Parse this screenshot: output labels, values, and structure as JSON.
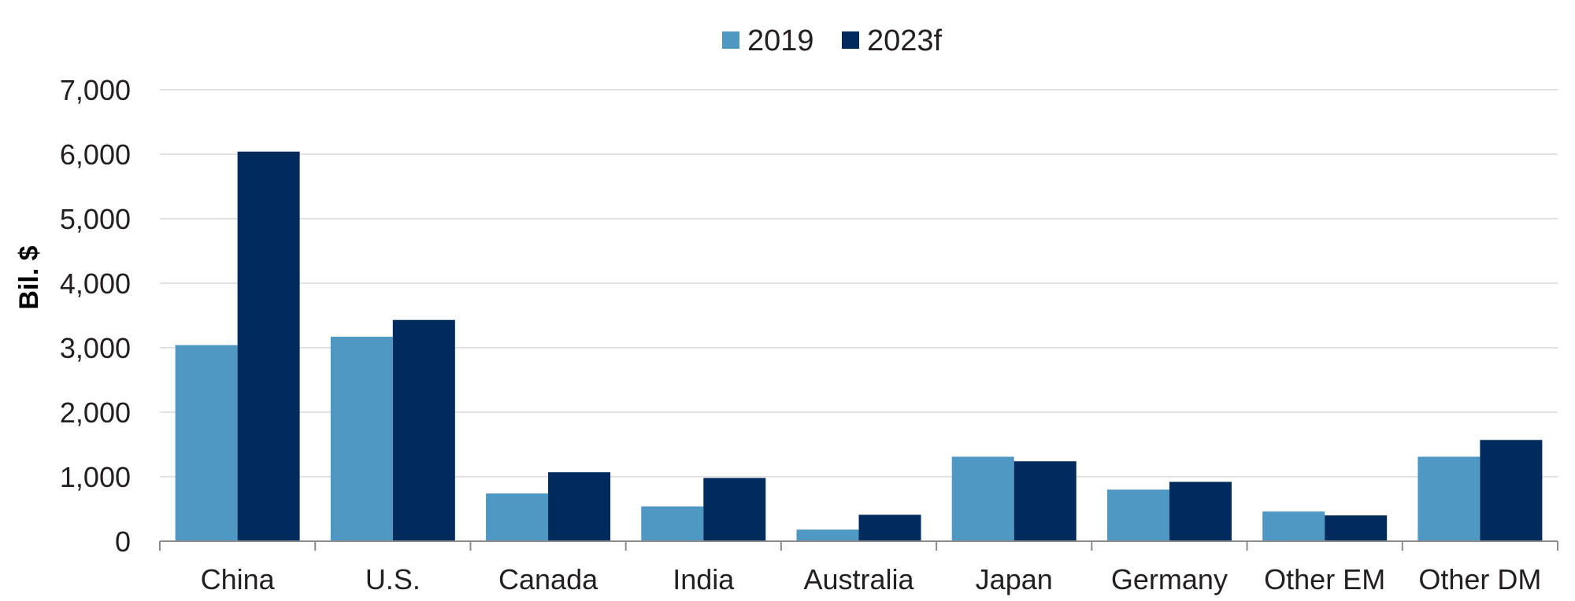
{
  "chart_data": {
    "type": "bar",
    "title": "",
    "xlabel": "",
    "ylabel": "Bil. $",
    "categories": [
      "China",
      "U.S.",
      "Canada",
      "India",
      "Australia",
      "Japan",
      "Germany",
      "Other EM",
      "Other DM"
    ],
    "series": [
      {
        "name": "2019",
        "color": "#4f98c3",
        "values": [
          3040,
          3170,
          740,
          540,
          180,
          1310,
          800,
          460,
          1310
        ]
      },
      {
        "name": "2023f",
        "color": "#002b5c",
        "values": [
          6040,
          3430,
          1070,
          980,
          410,
          1240,
          920,
          400,
          1570
        ]
      }
    ],
    "ylim": [
      0,
      7000
    ],
    "yticks": [
      0,
      1000,
      2000,
      3000,
      4000,
      5000,
      6000,
      7000
    ],
    "ytick_labels": [
      "0",
      "1,000",
      "2,000",
      "3,000",
      "4,000",
      "5,000",
      "6,000",
      "7,000"
    ],
    "grid": true,
    "legend_position": "top-center"
  }
}
